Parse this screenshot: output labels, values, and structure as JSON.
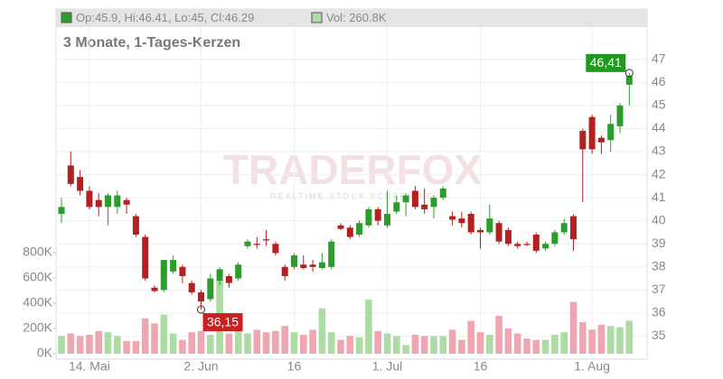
{
  "chart_data": {
    "type": "candlestick",
    "title": "3 Monate, 1-Tages-Kerzen",
    "header": "Op:45.9, Hi:46.41, Lo:45, Cl:46.29",
    "volume_header": "Vol: 260.8K",
    "watermark": "TRADERFOX",
    "watermark_sub": "REALTIME STOCK SCREENING",
    "categories": [
      null,
      null,
      null,
      "14. Mai",
      null,
      null,
      null,
      null,
      null,
      null,
      null,
      null,
      null,
      null,
      null,
      "2. Jun",
      null,
      null,
      null,
      null,
      null,
      null,
      null,
      null,
      null,
      "16",
      null,
      null,
      null,
      null,
      null,
      null,
      null,
      null,
      null,
      "1. Jul",
      null,
      null,
      null,
      null,
      null,
      null,
      null,
      null,
      null,
      "16",
      null,
      null,
      null,
      null,
      null,
      null,
      null,
      null,
      null,
      null,
      null,
      "1. Aug",
      null,
      null,
      null,
      null
    ],
    "open": [
      40.3,
      42.4,
      41.9,
      41.3,
      40.9,
      40.6,
      40.6,
      40.9,
      40.2,
      39.3,
      37.1,
      37.0,
      37.8,
      38.0,
      37.3,
      36.9,
      36.6,
      37.4,
      37.6,
      37.5,
      38.9,
      39.0,
      39.2,
      39.0,
      38.0,
      38.0,
      38.1,
      38.1,
      37.95,
      38.0,
      39.8,
      39.7,
      39.4,
      39.8,
      40.5,
      39.8,
      40.4,
      40.8,
      41.3,
      40.7,
      40.6,
      41.0,
      40.2,
      40.1,
      40.3,
      39.6,
      39.5,
      39.9,
      39.6,
      39.0,
      39.0,
      39.4,
      38.8,
      39.0,
      39.5,
      40.2,
      43.9,
      44.5,
      43.6,
      43.5,
      44.1,
      45.9
    ],
    "high": [
      41.0,
      43.0,
      42.2,
      41.5,
      41.2,
      41.2,
      41.3,
      41.0,
      40.3,
      39.4,
      37.2,
      38.3,
      38.5,
      38.1,
      37.4,
      37.0,
      37.7,
      38.0,
      37.7,
      38.2,
      39.2,
      39.3,
      39.6,
      39.1,
      38.1,
      38.6,
      38.5,
      38.3,
      38.6,
      39.2,
      39.9,
      39.8,
      40.0,
      40.6,
      40.6,
      41.3,
      41.1,
      41.2,
      41.5,
      41.4,
      41.1,
      41.5,
      40.4,
      40.4,
      40.4,
      39.7,
      40.7,
      40.0,
      39.7,
      39.1,
      39.1,
      39.5,
      39.1,
      39.6,
      40.1,
      40.3,
      44.0,
      44.6,
      43.7,
      44.6,
      45.1,
      46.41
    ],
    "low": [
      39.9,
      41.5,
      41.1,
      40.5,
      40.2,
      39.8,
      40.3,
      40.3,
      39.3,
      37.4,
      36.9,
      36.9,
      37.7,
      37.3,
      36.8,
      36.15,
      36.5,
      37.2,
      37.1,
      37.4,
      38.8,
      38.8,
      38.9,
      38.5,
      37.4,
      37.9,
      37.9,
      37.8,
      37.9,
      37.9,
      39.6,
      39.2,
      39.3,
      39.7,
      39.8,
      39.7,
      40.3,
      40.2,
      40.5,
      40.3,
      40.1,
      40.9,
      39.8,
      39.7,
      39.4,
      38.8,
      39.4,
      39.0,
      38.9,
      38.8,
      38.9,
      38.6,
      38.7,
      38.9,
      39.4,
      38.7,
      40.8,
      42.9,
      42.9,
      43.0,
      43.8,
      45.0
    ],
    "close": [
      40.6,
      41.6,
      41.3,
      40.6,
      40.6,
      41.1,
      41.1,
      40.7,
      39.4,
      37.5,
      36.95,
      38.3,
      38.3,
      37.6,
      36.9,
      36.5,
      37.5,
      37.9,
      37.3,
      38.1,
      39.1,
      38.95,
      39.15,
      38.6,
      37.6,
      38.5,
      37.95,
      38.0,
      38.2,
      39.1,
      39.65,
      39.3,
      39.9,
      40.5,
      40.0,
      40.3,
      40.8,
      41.1,
      40.6,
      40.5,
      41.0,
      41.4,
      40.05,
      39.9,
      39.5,
      39.5,
      40.1,
      39.1,
      39.0,
      38.9,
      38.95,
      38.7,
      39.0,
      39.5,
      39.9,
      39.2,
      43.1,
      43.1,
      43.4,
      44.2,
      45.0,
      46.29
    ],
    "volume": [
      140,
      160,
      140,
      150,
      180,
      170,
      140,
      100,
      100,
      280,
      240,
      310,
      160,
      110,
      170,
      180,
      150,
      580,
      160,
      190,
      160,
      190,
      170,
      180,
      220,
      170,
      150,
      190,
      360,
      170,
      110,
      140,
      130,
      430,
      180,
      160,
      140,
      70,
      150,
      140,
      140,
      140,
      190,
      110,
      260,
      170,
      150,
      300,
      200,
      160,
      120,
      110,
      110,
      150,
      170,
      410,
      250,
      190,
      230,
      220,
      210,
      260.8
    ],
    "up_color": "#2c9c2c",
    "down_color": "#b41f1f",
    "volume_up_color": "#acdca4",
    "volume_down_color": "#f0a6b0",
    "ylim": [
      34,
      48.4
    ],
    "yticks": [
      35,
      36,
      37,
      38,
      39,
      40,
      41,
      42,
      43,
      44,
      45,
      46,
      47
    ],
    "y2lim": [
      0,
      800
    ],
    "y2ticks": [
      {
        "value": 0,
        "label": "0K"
      },
      {
        "value": 200,
        "label": "200K"
      },
      {
        "value": 400,
        "label": "400K"
      },
      {
        "value": 600,
        "label": "600K"
      },
      {
        "value": 800,
        "label": "800K"
      }
    ],
    "grid": true,
    "max_label": {
      "value": 46.41,
      "label": "46,41"
    },
    "min_label": {
      "value": 36.15,
      "label": "36,15"
    }
  }
}
